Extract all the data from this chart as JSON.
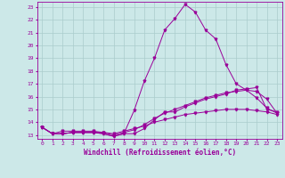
{
  "xlabel": "Windchill (Refroidissement éolien,°C)",
  "background_color": "#cce8e8",
  "grid_color": "#aacccc",
  "line_color": "#990099",
  "xlim": [
    -0.5,
    23.5
  ],
  "ylim": [
    12.7,
    23.4
  ],
  "yticks": [
    13,
    14,
    15,
    16,
    17,
    18,
    19,
    20,
    21,
    22,
    23
  ],
  "xticks": [
    0,
    1,
    2,
    3,
    4,
    5,
    6,
    7,
    8,
    9,
    10,
    11,
    12,
    13,
    14,
    15,
    16,
    17,
    18,
    19,
    20,
    21,
    22,
    23
  ],
  "series1_x": [
    0,
    1,
    2,
    3,
    4,
    5,
    6,
    7,
    8,
    9,
    10,
    11,
    12,
    13,
    14,
    15,
    16,
    17,
    18,
    19,
    20,
    21,
    22,
    23
  ],
  "series1_y": [
    13.6,
    13.1,
    13.1,
    13.2,
    13.2,
    13.2,
    13.1,
    12.9,
    13.1,
    14.9,
    17.2,
    19.0,
    21.2,
    22.1,
    23.2,
    22.6,
    21.2,
    20.5,
    18.5,
    17.0,
    16.5,
    15.9,
    15.1,
    14.7
  ],
  "series2_x": [
    0,
    1,
    2,
    3,
    4,
    5,
    6,
    7,
    8,
    9,
    10,
    11,
    12,
    13,
    14,
    15,
    16,
    17,
    18,
    19,
    20,
    21,
    22,
    23
  ],
  "series2_y": [
    13.6,
    13.1,
    13.1,
    13.2,
    13.2,
    13.2,
    13.1,
    12.9,
    13.1,
    13.1,
    13.5,
    14.2,
    14.8,
    14.8,
    15.2,
    15.5,
    15.8,
    16.0,
    16.2,
    16.5,
    16.6,
    16.7,
    15.0,
    14.8
  ],
  "series3_x": [
    0,
    1,
    2,
    3,
    4,
    5,
    6,
    7,
    8,
    9,
    10,
    11,
    12,
    13,
    14,
    15,
    16,
    17,
    18,
    19,
    20,
    21,
    22,
    23
  ],
  "series3_y": [
    13.6,
    13.1,
    13.1,
    13.2,
    13.2,
    13.2,
    13.2,
    13.0,
    13.2,
    13.4,
    13.8,
    14.3,
    14.7,
    15.0,
    15.3,
    15.6,
    15.9,
    16.1,
    16.3,
    16.4,
    16.5,
    16.4,
    15.8,
    14.7
  ],
  "series4_x": [
    0,
    1,
    2,
    3,
    4,
    5,
    6,
    7,
    8,
    9,
    10,
    11,
    12,
    13,
    14,
    15,
    16,
    17,
    18,
    19,
    20,
    21,
    22,
    23
  ],
  "series4_y": [
    13.6,
    13.1,
    13.3,
    13.3,
    13.3,
    13.3,
    13.2,
    13.1,
    13.3,
    13.5,
    13.7,
    14.0,
    14.2,
    14.4,
    14.6,
    14.7,
    14.8,
    14.9,
    15.0,
    15.0,
    15.0,
    14.9,
    14.8,
    14.6
  ],
  "tick_fontsize": 4.5,
  "xlabel_fontsize": 5.5,
  "marker_size": 2.0,
  "linewidth": 0.7
}
